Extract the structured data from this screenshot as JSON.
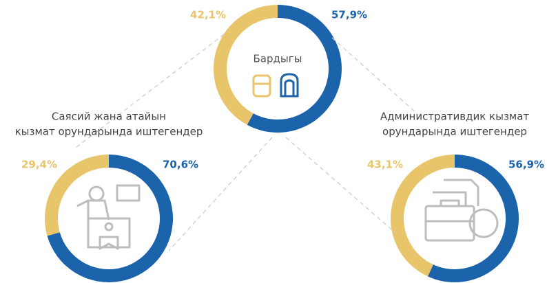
{
  "chart_data": [
    {
      "type": "donut",
      "title": [
        "Бардыгы"
      ],
      "values": [
        57.9,
        42.1
      ],
      "value_labels": [
        "57,9%",
        "42,1%"
      ],
      "colors": [
        "#1b63ab",
        "#e8c56a"
      ]
    },
    {
      "type": "donut",
      "title": [
        "Саясий жана атайын",
        "кызмат орундарында иштегендер"
      ],
      "values": [
        70.6,
        29.4
      ],
      "value_labels": [
        "70,6%",
        "29,4%"
      ],
      "colors": [
        "#1b63ab",
        "#e8c56a"
      ]
    },
    {
      "type": "donut",
      "title": [
        "Административдик кызмат",
        "орундарында иштегендер"
      ],
      "values": [
        56.9,
        43.1
      ],
      "value_labels": [
        "56,9%",
        "43,1%"
      ],
      "colors": [
        "#1b63ab",
        "#e8c56a"
      ]
    }
  ]
}
